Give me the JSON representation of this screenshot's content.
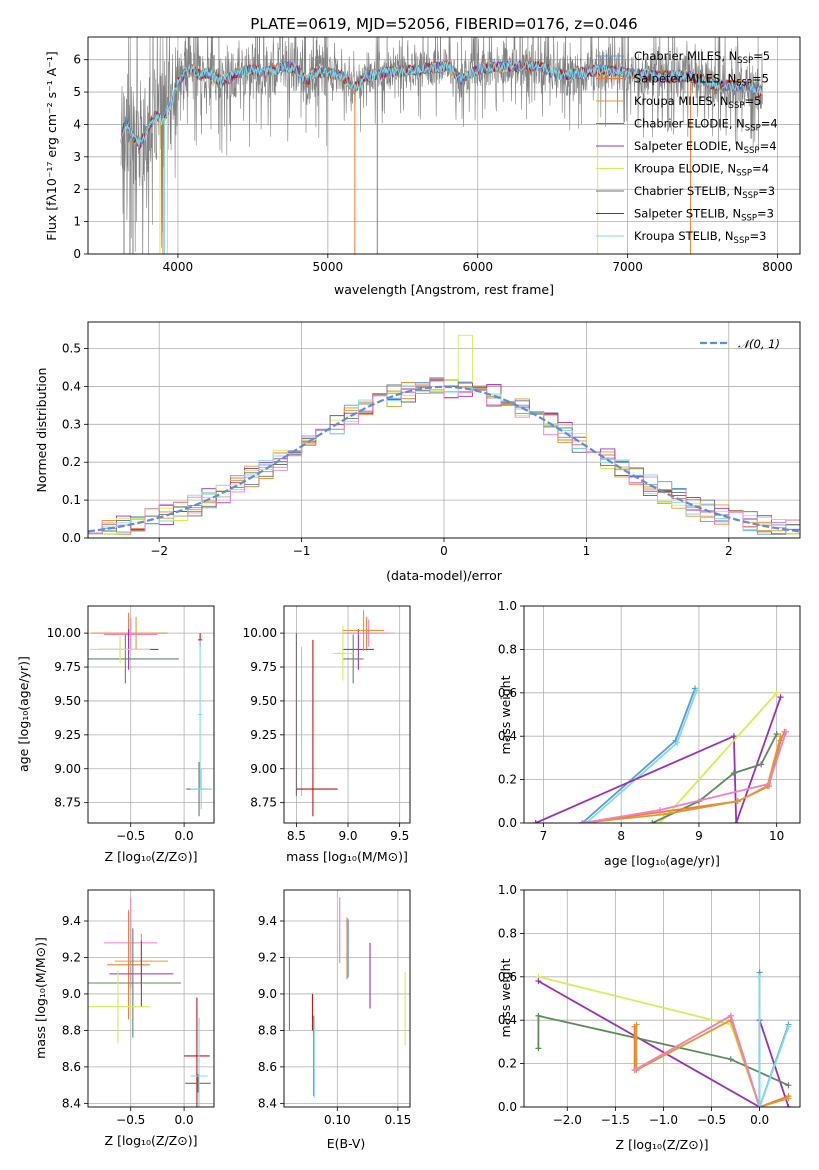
{
  "colors": {
    "chabrier_miles": "#5b9bd5",
    "salpeter_miles": "#f07c34",
    "kroupa_miles": "#e29a2f",
    "chabrier_elodie": "#5e8a5e",
    "salpeter_elodie": "#9b30b8",
    "kroupa_elodie": "#d7ec55",
    "chabrier_stelib": "#6f6f6f",
    "salpeter_stelib": "#c4141a",
    "kroupa_stelib": "#7fdde3",
    "gray_data": "#808080",
    "pink": "#ee82c8",
    "gaussian": "#5b8fd6",
    "grid": "#b0b0b0"
  },
  "chart_data": [
    {
      "type": "line",
      "id": "spectrum",
      "title": "PLATE=0619, MJD=52056, FIBERID=0176, z=0.046",
      "xlabel": "wavelength [Angstrom, rest frame]",
      "ylabel": "Flux [fλ10⁻¹⁷ erg cm⁻² s⁻¹ A⁻¹]",
      "xlim": [
        3400,
        8150
      ],
      "ylim": [
        0,
        6.7
      ],
      "xticks": [
        4000,
        5000,
        6000,
        7000,
        8000
      ],
      "yticks": [
        0,
        1,
        2,
        3,
        4,
        5,
        6
      ],
      "legend": "right",
      "legend_entries": [
        {
          "label": "Chabrier MILES, N",
          "sub": "SSP",
          "suffix": "=5",
          "key": "chabrier_miles"
        },
        {
          "label": "Salpeter MILES, N",
          "sub": "SSP",
          "suffix": "=5",
          "key": "salpeter_miles"
        },
        {
          "label": "Kroupa MILES, N",
          "sub": "SSP",
          "suffix": "=5",
          "key": "kroupa_miles"
        },
        {
          "label": "Chabrier ELODIE, N",
          "sub": "SSP",
          "suffix": "=4",
          "key": "chabrier_elodie"
        },
        {
          "label": "Salpeter ELODIE, N",
          "sub": "SSP",
          "suffix": "=4",
          "key": "salpeter_elodie"
        },
        {
          "label": "Kroupa ELODIE, N",
          "sub": "SSP",
          "suffix": "=4",
          "key": "kroupa_elodie"
        },
        {
          "label": "Chabrier STELIB, N",
          "sub": "SSP",
          "suffix": "=3",
          "key": "chabrier_stelib"
        },
        {
          "label": "Salpeter STELIB, N",
          "sub": "SSP",
          "suffix": "=3",
          "key": "salpeter_stelib"
        },
        {
          "label": "Kroupa STELIB, N",
          "sub": "SSP",
          "suffix": "=3",
          "key": "kroupa_stelib"
        }
      ],
      "model_curve": [
        [
          3620,
          3.5
        ],
        [
          3650,
          4.1
        ],
        [
          3700,
          3.6
        ],
        [
          3750,
          3.4
        ],
        [
          3800,
          3.9
        ],
        [
          3850,
          4.3
        ],
        [
          3900,
          4.1
        ],
        [
          3950,
          4.6
        ],
        [
          4000,
          5.3
        ],
        [
          4050,
          5.6
        ],
        [
          4100,
          5.7
        ],
        [
          4150,
          5.5
        ],
        [
          4200,
          5.6
        ],
        [
          4300,
          5.3
        ],
        [
          4400,
          5.6
        ],
        [
          4500,
          5.7
        ],
        [
          4600,
          5.6
        ],
        [
          4700,
          5.8
        ],
        [
          4800,
          5.7
        ],
        [
          4860,
          5.3
        ],
        [
          4900,
          5.6
        ],
        [
          5000,
          5.6
        ],
        [
          5100,
          5.5
        ],
        [
          5175,
          5.1
        ],
        [
          5250,
          5.5
        ],
        [
          5400,
          5.6
        ],
        [
          5600,
          5.7
        ],
        [
          5800,
          5.8
        ],
        [
          5890,
          5.4
        ],
        [
          6000,
          5.7
        ],
        [
          6200,
          5.8
        ],
        [
          6400,
          5.8
        ],
        [
          6563,
          5.5
        ],
        [
          6700,
          5.6
        ],
        [
          6800,
          5.7
        ],
        [
          7000,
          5.6
        ],
        [
          7200,
          5.5
        ],
        [
          7400,
          5.5
        ],
        [
          7600,
          5.2
        ],
        [
          7800,
          5.2
        ],
        [
          7900,
          5.0
        ]
      ],
      "dropouts": [
        [
          3640,
          "gray_data"
        ],
        [
          3680,
          "gray_data"
        ],
        [
          3700,
          "gray_data"
        ],
        [
          3880,
          "kroupa_elodie"
        ],
        [
          3900,
          "salpeter_miles"
        ],
        [
          3910,
          "kroupa_stelib"
        ],
        [
          3930,
          "kroupa_elodie"
        ],
        [
          5180,
          "salpeter_miles"
        ],
        [
          5330,
          "gray_data"
        ],
        [
          6800,
          "kroupa_elodie"
        ],
        [
          7420,
          "salpeter_miles"
        ]
      ]
    },
    {
      "type": "bar",
      "id": "residual-histogram",
      "xlabel": "(data-model)/error",
      "ylabel": "Normed distribution",
      "xlim": [
        -2.5,
        2.5
      ],
      "ylim": [
        0,
        0.57
      ],
      "xticks": [
        -2,
        -1,
        0,
        1,
        2
      ],
      "yticks": [
        0.0,
        0.1,
        0.2,
        0.3,
        0.4,
        0.5
      ],
      "bin_width": 0.1,
      "legend": "top-right",
      "legend_label": "𝒩(0, 1)",
      "series_keys": [
        "chabrier_miles",
        "salpeter_miles",
        "kroupa_miles",
        "salpeter_elodie",
        "kroupa_elodie",
        "chabrier_stelib",
        "kroupa_stelib",
        "pink"
      ],
      "gaussian_overlay": {
        "mean": 0,
        "sigma": 1
      }
    },
    {
      "type": "scatter",
      "id": "age-vs-z",
      "xlabel": "Z [log₁₀(Z/Z⊙)]",
      "ylabel": "age  [log₁₀(age/yr)]",
      "xlim": [
        -0.9,
        0.28
      ],
      "ylim": [
        8.6,
        10.2
      ],
      "xticks": [
        -0.5,
        0.0
      ],
      "yticks": [
        8.75,
        9.0,
        9.25,
        9.5,
        9.75,
        10.0
      ],
      "points": [
        {
          "x": -0.52,
          "y": 10.0,
          "ex": 0.35,
          "ey": 0.15,
          "key": "salpeter_miles"
        },
        {
          "x": -0.45,
          "y": 10.0,
          "ex": 0.3,
          "ey": 0.12,
          "key": "kroupa_miles"
        },
        {
          "x": -0.5,
          "y": 9.99,
          "ex": 0.25,
          "ey": 0.12,
          "key": "pink"
        },
        {
          "x": -0.52,
          "y": 9.88,
          "ex": 0.28,
          "ey": 0.15,
          "key": "salpeter_elodie"
        },
        {
          "x": -0.55,
          "y": 9.81,
          "ex": 0.5,
          "ey": 0.18,
          "key": "chabrier_elodie"
        },
        {
          "x": -0.6,
          "y": 9.88,
          "ex": 0.28,
          "ey": 0.1,
          "key": "kroupa_elodie"
        },
        {
          "x": 0.15,
          "y": 9.95,
          "ex": 0.02,
          "ey": 0.05,
          "key": "salpeter_stelib"
        },
        {
          "x": 0.14,
          "y": 8.85,
          "ex": 0.12,
          "ey": 0.2,
          "key": "chabrier_stelib"
        },
        {
          "x": 0.16,
          "y": 8.85,
          "ex": 0.1,
          "ey": 0.15,
          "key": "kroupa_stelib"
        },
        {
          "x": 0.15,
          "y": 9.4,
          "ex": 0.02,
          "ey": 0.55,
          "key": "kroupa_stelib"
        }
      ]
    },
    {
      "type": "scatter",
      "id": "age-vs-mass",
      "xlabel": "mass [log₁₀(M/M⊙)]",
      "ylabel": "",
      "xlim": [
        8.38,
        9.6
      ],
      "ylim": [
        8.6,
        10.2
      ],
      "xticks": [
        8.5,
        9.0,
        9.5
      ],
      "yticks": [
        8.75,
        9.0,
        9.25,
        9.5,
        9.75,
        10.0
      ],
      "points": [
        {
          "x": 8.5,
          "y": 9.4,
          "ex": 0.0,
          "ey": 0.6,
          "key": "chabrier_stelib"
        },
        {
          "x": 8.55,
          "y": 9.35,
          "ex": 0.0,
          "ey": 0.55,
          "key": "kroupa_stelib"
        },
        {
          "x": 8.66,
          "y": 9.3,
          "ex": 0.0,
          "ey": 0.65,
          "key": "salpeter_stelib"
        },
        {
          "x": 8.7,
          "y": 8.85,
          "ex": 0.2,
          "ey": 0.0,
          "key": "salpeter_stelib"
        },
        {
          "x": 9.1,
          "y": 9.88,
          "ex": 0.15,
          "ey": 0.15,
          "key": "salpeter_elodie"
        },
        {
          "x": 9.05,
          "y": 9.81,
          "ex": 0.1,
          "ey": 0.18,
          "key": "chabrier_elodie"
        },
        {
          "x": 8.95,
          "y": 9.85,
          "ex": 0.1,
          "ey": 0.2,
          "key": "kroupa_elodie"
        },
        {
          "x": 9.18,
          "y": 10.0,
          "ex": 0.2,
          "ey": 0.12,
          "key": "salpeter_miles"
        },
        {
          "x": 9.2,
          "y": 10.0,
          "ex": 0.25,
          "ey": 0.1,
          "key": "pink"
        },
        {
          "x": 9.15,
          "y": 10.02,
          "ex": 0.2,
          "ey": 0.15,
          "key": "kroupa_miles"
        }
      ]
    },
    {
      "type": "line",
      "id": "mass-weight-vs-age",
      "xlabel": "age  [log₁₀(age/yr)]",
      "ylabel": "mass weight",
      "xlim": [
        6.75,
        10.3
      ],
      "ylim": [
        0,
        1.0
      ],
      "xticks": [
        7,
        8,
        9,
        10
      ],
      "yticks": [
        0.0,
        0.2,
        0.4,
        0.6,
        0.8,
        1.0
      ],
      "series": [
        {
          "key": "chabrier_miles",
          "values": [
            [
              7.5,
              0.0
            ],
            [
              8.7,
              0.38
            ],
            [
              8.95,
              0.62
            ]
          ]
        },
        {
          "key": "kroupa_stelib",
          "values": [
            [
              7.55,
              0.0
            ],
            [
              8.72,
              0.37
            ],
            [
              8.97,
              0.61
            ]
          ]
        },
        {
          "key": "salpeter_elodie",
          "values": [
            [
              6.9,
              0.0
            ],
            [
              9.45,
              0.4
            ],
            [
              9.48,
              0.0
            ],
            [
              10.05,
              0.58
            ]
          ]
        },
        {
          "key": "kroupa_elodie",
          "values": [
            [
              8.5,
              0.0
            ],
            [
              10.0,
              0.6
            ]
          ]
        },
        {
          "key": "chabrier_elodie",
          "values": [
            [
              8.4,
              0.0
            ],
            [
              9.0,
              0.1
            ],
            [
              9.45,
              0.23
            ],
            [
              9.8,
              0.27
            ],
            [
              10.0,
              0.41
            ]
          ]
        },
        {
          "key": "salpeter_miles",
          "values": [
            [
              7.5,
              0.0
            ],
            [
              8.5,
              0.05
            ],
            [
              9.5,
              0.1
            ],
            [
              9.9,
              0.17
            ],
            [
              10.05,
              0.38
            ],
            [
              10.1,
              0.42
            ]
          ]
        },
        {
          "key": "kroupa_miles",
          "values": [
            [
              7.5,
              0.0
            ],
            [
              8.55,
              0.04
            ],
            [
              9.5,
              0.1
            ],
            [
              9.88,
              0.17
            ],
            [
              10.05,
              0.4
            ]
          ]
        },
        {
          "key": "pink",
          "values": [
            [
              7.5,
              0.0
            ],
            [
              8.5,
              0.06
            ],
            [
              9.9,
              0.18
            ],
            [
              10.12,
              0.42
            ]
          ]
        }
      ]
    },
    {
      "type": "scatter",
      "id": "mass-vs-z",
      "xlabel": "Z [log₁₀(Z/Z⊙)]",
      "ylabel": "mass [log₁₀(M/M⊙)]",
      "xlim": [
        -0.9,
        0.28
      ],
      "ylim": [
        8.38,
        9.57
      ],
      "xticks": [
        -0.5,
        0.0
      ],
      "yticks": [
        8.4,
        8.6,
        8.8,
        9.0,
        9.2,
        9.4
      ],
      "points": [
        {
          "x": -0.5,
          "y": 9.28,
          "ex": 0.25,
          "ey": 0.25,
          "key": "pink"
        },
        {
          "x": -0.52,
          "y": 9.16,
          "ex": 0.2,
          "ey": 0.3,
          "key": "salpeter_miles"
        },
        {
          "x": -0.4,
          "y": 9.18,
          "ex": 0.25,
          "ey": 0.15,
          "key": "kroupa_miles"
        },
        {
          "x": -0.4,
          "y": 9.11,
          "ex": 0.3,
          "ey": 0.18,
          "key": "salpeter_elodie"
        },
        {
          "x": -0.48,
          "y": 9.06,
          "ex": 0.45,
          "ey": 0.3,
          "key": "chabrier_elodie"
        },
        {
          "x": -0.62,
          "y": 8.93,
          "ex": 0.3,
          "ey": 0.2,
          "key": "kroupa_elodie"
        },
        {
          "x": 0.12,
          "y": 8.66,
          "ex": 0.12,
          "ey": 0.32,
          "key": "salpeter_stelib"
        },
        {
          "x": 0.13,
          "y": 8.51,
          "ex": 0.12,
          "ey": 0.05,
          "key": "chabrier_stelib"
        },
        {
          "x": 0.14,
          "y": 8.55,
          "ex": 0.08,
          "ey": 0.32,
          "key": "kroupa_stelib"
        }
      ]
    },
    {
      "type": "scatter",
      "id": "mass-vs-ebv",
      "xlabel": "E(B-V)",
      "ylabel": "",
      "xlim": [
        0.056,
        0.16
      ],
      "ylim": [
        8.38,
        9.57
      ],
      "xticks": [
        0.1,
        0.15
      ],
      "yticks": [
        8.4,
        8.6,
        8.8,
        9.0,
        9.2,
        9.4
      ],
      "points": [
        {
          "x": 0.0605,
          "y": 9.0,
          "ex": 0,
          "ey": 0.2,
          "key": "chabrier_elodie"
        },
        {
          "x": 0.0795,
          "y": 8.9,
          "ex": 0,
          "ey": 0.1,
          "key": "salpeter_stelib"
        },
        {
          "x": 0.0805,
          "y": 8.66,
          "ex": 0,
          "ey": 0.22,
          "key": "chabrier_stelib"
        },
        {
          "x": 0.081,
          "y": 8.65,
          "ex": 0,
          "ey": 0.22,
          "key": "kroupa_stelib"
        },
        {
          "x": 0.102,
          "y": 9.35,
          "ex": 0,
          "ey": 0.18,
          "key": "pink"
        },
        {
          "x": 0.108,
          "y": 9.25,
          "ex": 0,
          "ey": 0.17,
          "key": "salpeter_miles"
        },
        {
          "x": 0.109,
          "y": 9.25,
          "ex": 0,
          "ey": 0.16,
          "key": "chabrier_miles"
        },
        {
          "x": 0.127,
          "y": 9.1,
          "ex": 0,
          "ey": 0.18,
          "key": "salpeter_elodie"
        },
        {
          "x": 0.156,
          "y": 8.92,
          "ex": 0,
          "ey": 0.2,
          "key": "kroupa_elodie"
        }
      ]
    },
    {
      "type": "line",
      "id": "mass-weight-vs-z",
      "xlabel": "Z [log₁₀(Z/Z⊙)]",
      "ylabel": "mass weight",
      "xlim": [
        -2.45,
        0.42
      ],
      "ylim": [
        0,
        1.0
      ],
      "xticks": [
        -2.0,
        -1.5,
        -1.0,
        -0.5,
        0.0
      ],
      "yticks": [
        0.0,
        0.2,
        0.4,
        0.6,
        0.8,
        1.0
      ],
      "series": [
        {
          "key": "kroupa_elodie",
          "values": [
            [
              -2.3,
              0.6
            ],
            [
              -0.3,
              0.38
            ],
            [
              0.0,
              0.0
            ]
          ]
        },
        {
          "key": "salpeter_elodie",
          "values": [
            [
              -2.3,
              0.58
            ],
            [
              0.0,
              0.0
            ],
            [
              0.0,
              0.4
            ],
            [
              0.3,
              0.0
            ]
          ]
        },
        {
          "key": "chabrier_elodie",
          "values": [
            [
              -2.3,
              0.27
            ],
            [
              -2.3,
              0.42
            ],
            [
              -0.3,
              0.22
            ],
            [
              0.3,
              0.1
            ]
          ]
        },
        {
          "key": "salpeter_miles",
          "values": [
            [
              -1.3,
              0.37
            ],
            [
              -1.3,
              0.17
            ],
            [
              -0.3,
              0.42
            ],
            [
              0.0,
              0.0
            ],
            [
              0.3,
              0.05
            ]
          ]
        },
        {
          "key": "kroupa_miles",
          "values": [
            [
              -1.28,
              0.38
            ],
            [
              -1.28,
              0.17
            ],
            [
              -0.3,
              0.4
            ],
            [
              0.0,
              0.0
            ],
            [
              0.3,
              0.04
            ]
          ]
        },
        {
          "key": "pink",
          "values": [
            [
              -1.3,
              0.17
            ],
            [
              -0.3,
              0.42
            ],
            [
              0.0,
              0.0
            ]
          ]
        },
        {
          "key": "chabrier_miles",
          "values": [
            [
              0.0,
              0.62
            ],
            [
              0.0,
              0.0
            ],
            [
              0.3,
              0.38
            ]
          ]
        },
        {
          "key": "kroupa_stelib",
          "values": [
            [
              0.0,
              0.6
            ],
            [
              0.0,
              0.0
            ],
            [
              0.3,
              0.37
            ]
          ]
        }
      ]
    }
  ]
}
